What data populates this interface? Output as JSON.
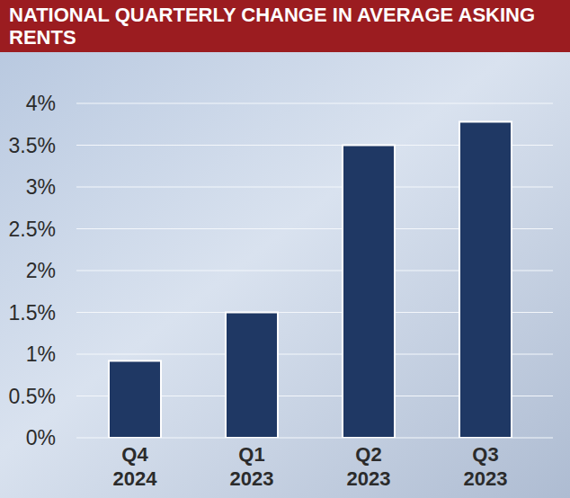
{
  "chart_data": {
    "type": "bar",
    "title": "NATIONAL QUARTERLY CHANGE IN AVERAGE ASKING RENTS",
    "categories": [
      "Q4 2024",
      "Q1 2023",
      "Q2 2023",
      "Q3 2023"
    ],
    "values": [
      0.92,
      1.5,
      3.5,
      3.78
    ],
    "color": "#1f3864",
    "ylim": [
      0,
      4
    ],
    "yticks": [
      {
        "value": 0,
        "label": "0%"
      },
      {
        "value": 0.5,
        "label": "0.5%"
      },
      {
        "value": 1,
        "label": "1%"
      },
      {
        "value": 1.5,
        "label": "1.5%"
      },
      {
        "value": 2,
        "label": "2%"
      },
      {
        "value": 2.5,
        "label": "2.5%"
      },
      {
        "value": 3,
        "label": "3%"
      },
      {
        "value": 3.5,
        "label": "3.5%"
      },
      {
        "value": 4,
        "label": "4%"
      }
    ],
    "grid": true
  }
}
